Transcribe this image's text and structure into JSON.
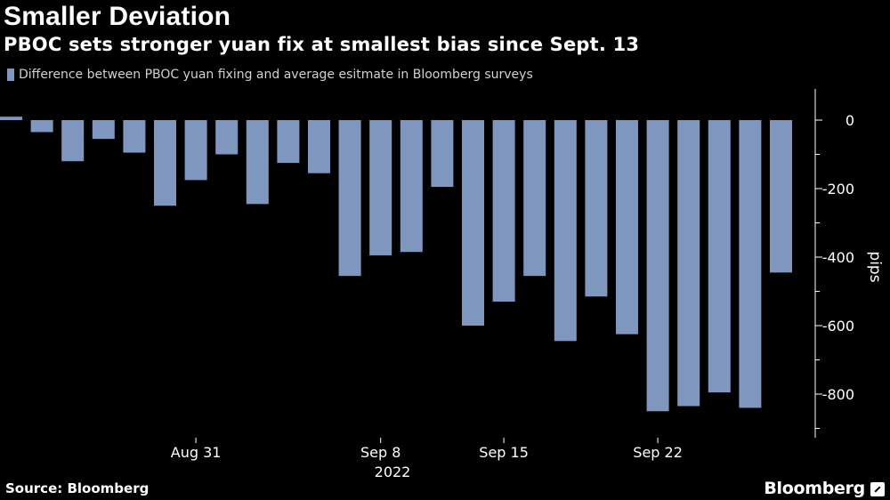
{
  "header": {
    "title": "Smaller Deviation",
    "subtitle": "PBOC sets stronger yuan fix at smallest bias since Sept. 13"
  },
  "footer": {
    "source": "Source: Bloomberg",
    "brand": "Bloomberg"
  },
  "chart_data": {
    "type": "bar",
    "title": "Smaller Deviation",
    "subtitle": "PBOC sets stronger yuan fix at smallest bias since Sept. 13",
    "legend": [
      "Difference between PBOC yuan fixing and average esitmate in Bloomberg surveys"
    ],
    "series_color": "#7f97bf",
    "ylabel": "pips",
    "ylim": [
      -920,
      90
    ],
    "yticks": [
      0,
      -200,
      -400,
      -600,
      -800
    ],
    "ytick_labels": [
      "0",
      "-200",
      "-400",
      "-600",
      "-800"
    ],
    "xtick_labels": [
      {
        "label": "Aug 31",
        "index": 6
      },
      {
        "label": "Sep 8",
        "index": 12
      },
      {
        "label": "Sep 15",
        "index": 16
      },
      {
        "label": "Sep 22",
        "index": 21
      }
    ],
    "xyear_label": "2022",
    "values": [
      10,
      -35,
      -120,
      -55,
      -95,
      -250,
      -175,
      -100,
      -245,
      -125,
      -155,
      -455,
      -395,
      -385,
      -195,
      -600,
      -530,
      -455,
      -645,
      -515,
      -625,
      -850,
      -835,
      -795,
      -840,
      -445
    ]
  }
}
